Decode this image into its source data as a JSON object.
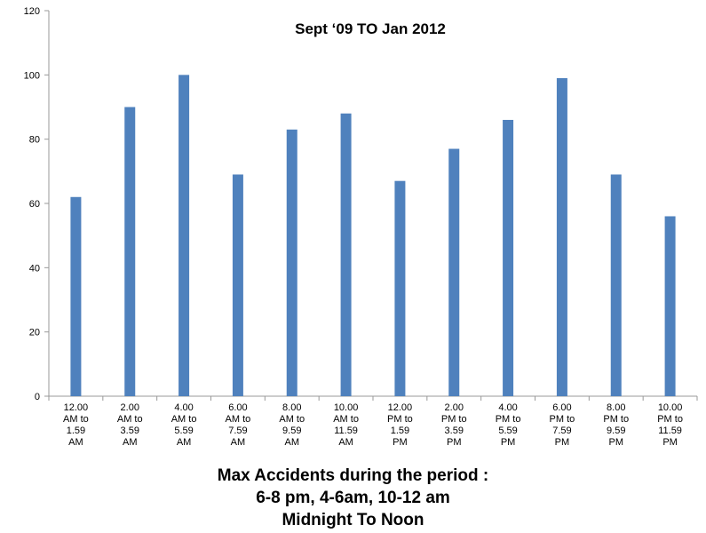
{
  "chart_data": {
    "type": "bar",
    "title": "Sept  ‘09 TO Jan 2012",
    "categories": [
      [
        "12.00",
        "AM to",
        "1.59",
        "AM"
      ],
      [
        "2.00",
        "AM to",
        "3.59",
        "AM"
      ],
      [
        "4.00",
        "AM to",
        "5.59",
        "AM"
      ],
      [
        "6.00",
        "AM to",
        "7.59",
        "AM"
      ],
      [
        "8.00",
        "AM to",
        "9.59",
        "AM"
      ],
      [
        "10.00",
        "AM to",
        "11.59",
        "AM"
      ],
      [
        "12.00",
        "PM to",
        "1.59",
        "PM"
      ],
      [
        "2.00",
        "PM to",
        "3.59",
        "PM"
      ],
      [
        "4.00",
        "PM to",
        "5.59",
        "PM"
      ],
      [
        "6.00",
        "PM to",
        "7.59",
        "PM"
      ],
      [
        "8.00",
        "PM to",
        "9.59",
        "PM"
      ],
      [
        "10.00",
        "PM to",
        "11.59",
        "PM"
      ]
    ],
    "values": [
      62,
      90,
      100,
      69,
      83,
      88,
      67,
      77,
      86,
      99,
      69,
      56
    ],
    "ylim": [
      0,
      120
    ],
    "yticks": [
      0,
      20,
      40,
      60,
      80,
      100,
      120
    ],
    "bar_color": "#4F81BD",
    "grid": false,
    "legend": "none",
    "xlabel": "",
    "ylabel": ""
  },
  "captions": {
    "line1": "Max Accidents during the period :",
    "line2": "6-8 pm,  4-6am,  10-12 am",
    "line3": "Midnight  To  Noon"
  }
}
